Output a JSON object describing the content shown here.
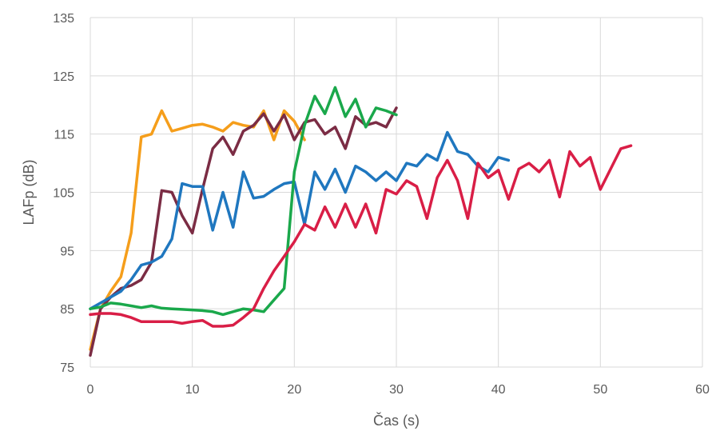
{
  "chart_data": {
    "type": "line",
    "xlabel": "Čas (s)",
    "ylabel": "LAFp (dB)",
    "xlim": [
      0,
      60
    ],
    "ylim": [
      75,
      135
    ],
    "xticks": [
      "0",
      "10",
      "20",
      "30",
      "40",
      "50",
      "60"
    ],
    "yticks": [
      "75",
      "85",
      "95",
      "105",
      "115",
      "125",
      "135"
    ],
    "grid": true,
    "legend": "none",
    "series": [
      {
        "color": "#f59e1b",
        "x": [
          0,
          1,
          2,
          3,
          4,
          5,
          6,
          7,
          8,
          9,
          10,
          11,
          12,
          13,
          14,
          15,
          16,
          17,
          18,
          19,
          20,
          21
        ],
        "y": [
          78,
          85,
          88,
          90.5,
          98,
          114.5,
          115,
          119,
          115.5,
          116,
          116.5,
          116.7,
          116.2,
          115.5,
          117,
          116.5,
          116.2,
          119,
          114,
          119,
          117.2,
          114
        ]
      },
      {
        "color": "#7b2c44",
        "x": [
          0,
          1,
          2,
          3,
          4,
          5,
          6,
          7,
          8,
          9,
          10,
          11,
          12,
          13,
          14,
          15,
          16,
          17,
          18,
          19,
          20,
          21,
          22,
          23,
          24,
          25,
          26,
          27,
          28,
          29,
          30
        ],
        "y": [
          77,
          85,
          87,
          88.5,
          89,
          90,
          93,
          105.3,
          105,
          101,
          98,
          105.5,
          112.5,
          114.5,
          111.5,
          115.5,
          116.5,
          118.5,
          115.5,
          118.3,
          114,
          117,
          117.5,
          115,
          116.2,
          112.5,
          118,
          116.5,
          117,
          116.2,
          119.5
        ]
      },
      {
        "color": "#1f77bf",
        "x": [
          0,
          1,
          2,
          3,
          4,
          5,
          6,
          7,
          8,
          9,
          10,
          11,
          12,
          13,
          14,
          15,
          16,
          17,
          18,
          19,
          20,
          21,
          22,
          23,
          24,
          25,
          26,
          27,
          28,
          29,
          30,
          31,
          32,
          33,
          34,
          35,
          36,
          37,
          38,
          39,
          40,
          41
        ],
        "y": [
          85,
          86,
          87,
          88,
          90,
          92.5,
          93,
          94,
          97,
          106.5,
          106,
          106,
          98.5,
          105,
          99,
          108.5,
          104,
          104.3,
          105.5,
          106.5,
          106.8,
          99.5,
          108.5,
          105.5,
          109,
          105,
          109.5,
          108.5,
          107,
          108.5,
          107,
          110,
          109.5,
          111.5,
          110.5,
          115.3,
          112,
          111.5,
          109.5,
          108.5,
          111,
          110.5
        ]
      },
      {
        "color": "#1aa84b",
        "x": [
          0,
          1,
          2,
          3,
          4,
          5,
          6,
          7,
          8,
          9,
          10,
          11,
          12,
          13,
          14,
          15,
          16,
          17,
          18,
          19,
          20,
          21,
          22,
          23,
          24,
          25,
          26,
          27,
          28,
          29,
          30
        ],
        "y": [
          85,
          85.3,
          86,
          85.8,
          85.5,
          85.2,
          85.5,
          85.1,
          85,
          84.9,
          84.8,
          84.7,
          84.5,
          84,
          84.5,
          85,
          84.8,
          84.5,
          86.5,
          88.5,
          108.5,
          116.5,
          121.5,
          118.5,
          123,
          118,
          121,
          116.2,
          119.5,
          119,
          118.3
        ]
      },
      {
        "color": "#d91e46",
        "x": [
          0,
          1,
          2,
          3,
          4,
          5,
          6,
          7,
          8,
          9,
          10,
          11,
          12,
          13,
          14,
          15,
          16,
          17,
          18,
          19,
          20,
          21,
          22,
          23,
          24,
          25,
          26,
          27,
          28,
          29,
          30,
          31,
          32,
          33,
          34,
          35,
          36,
          37,
          38,
          39,
          40,
          41,
          42,
          43,
          44,
          45,
          46,
          47,
          48,
          49,
          50,
          51,
          52,
          53
        ],
        "y": [
          84,
          84.2,
          84.2,
          84,
          83.5,
          82.8,
          82.8,
          82.8,
          82.8,
          82.5,
          82.8,
          83,
          82,
          82,
          82.2,
          83.5,
          85,
          88.5,
          91.5,
          94,
          96.5,
          99.5,
          98.5,
          102.5,
          99,
          103,
          99,
          103,
          98,
          105.5,
          104.7,
          107,
          106,
          100.5,
          107.5,
          110.5,
          107,
          100.5,
          110,
          107.5,
          108.8,
          103.8,
          109,
          110,
          108.5,
          110.5,
          104.2,
          112,
          109.5,
          111,
          105.5,
          109,
          112.5,
          113
        ]
      }
    ]
  }
}
